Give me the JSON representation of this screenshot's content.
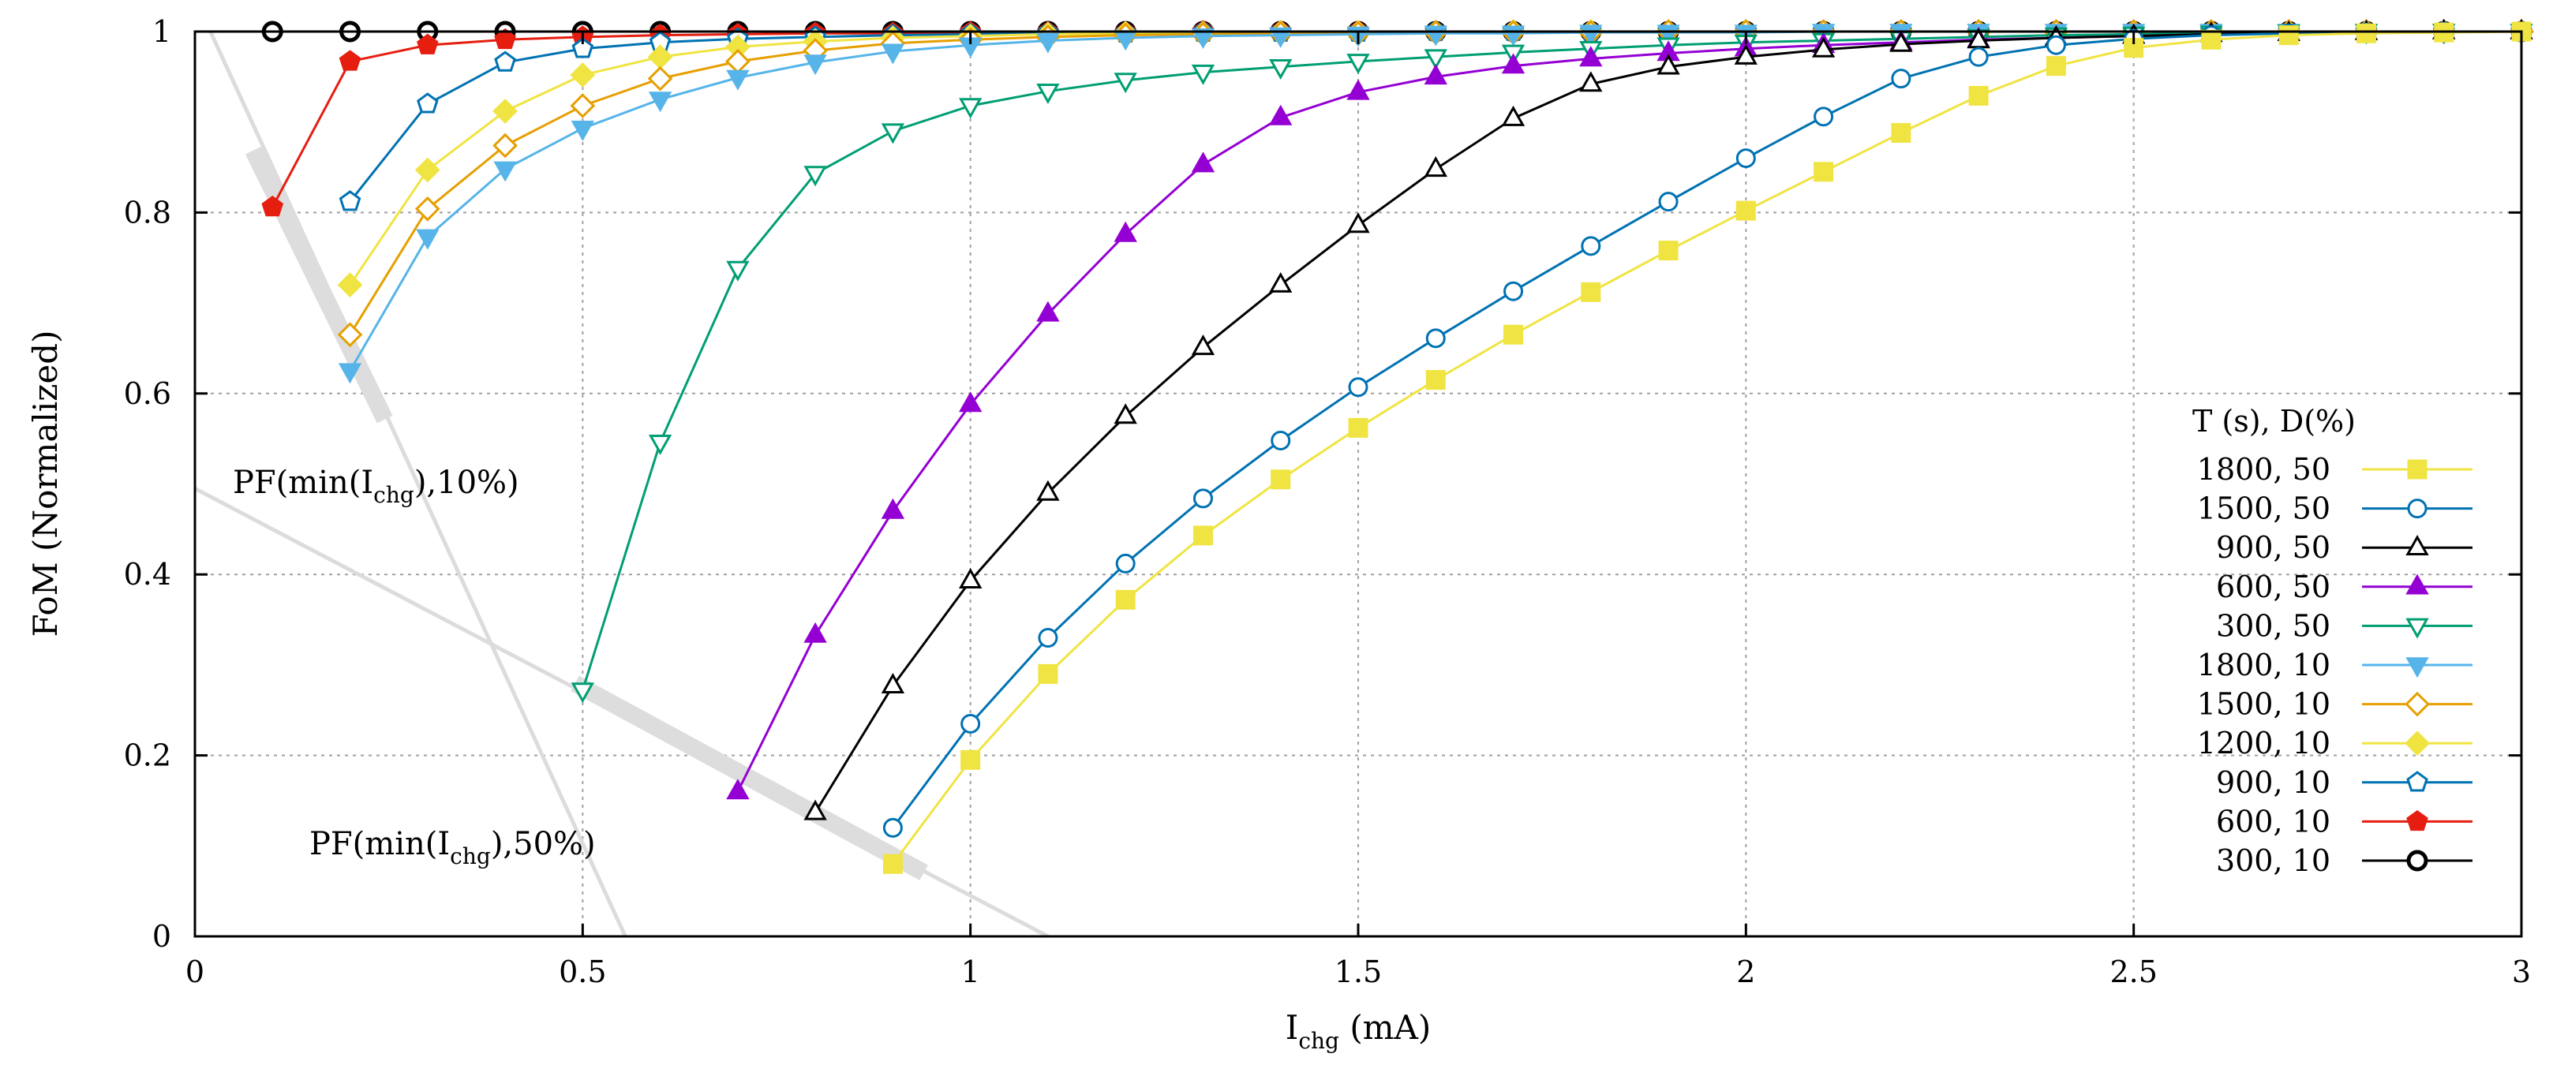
{
  "chart_data": {
    "type": "line",
    "title": "",
    "xlabel_main": "I",
    "xlabel_sub": "chg",
    "xlabel_unit": " (mA)",
    "ylabel": "FoM (Normalized)",
    "xlim": [
      0,
      3
    ],
    "ylim": [
      0,
      1
    ],
    "xticks": [
      0,
      0.5,
      1,
      1.5,
      2,
      2.5,
      3
    ],
    "xtick_labels": [
      "0",
      "0.5",
      "1",
      "1.5",
      "2",
      "2.5",
      "3"
    ],
    "yticks": [
      0,
      0.2,
      0.4,
      0.6,
      0.8,
      1
    ],
    "ytick_labels": [
      "0",
      "0.2",
      "0.4",
      "0.6",
      "0.8",
      "1"
    ],
    "grid": true,
    "legend_title": "T (s), D(%)",
    "legend_position": "right",
    "annotations": [
      {
        "prefix": "PF(min(I",
        "sub": "chg",
        "suffix": "),10%)"
      },
      {
        "prefix": "PF(min(I",
        "sub": "chg",
        "suffix": "),50%)"
      }
    ],
    "series": [
      {
        "name": "1800, 50",
        "color": "#f0e442",
        "marker": "square",
        "filled": true,
        "x": [
          0.9,
          1.0,
          1.1,
          1.2,
          1.3,
          1.4,
          1.5,
          1.6,
          1.7,
          1.8,
          1.9,
          2.0,
          2.1,
          2.2,
          2.3,
          2.4,
          2.5,
          2.6,
          2.7,
          2.8,
          2.9,
          3.0
        ],
        "y": [
          0.08,
          0.195,
          0.29,
          0.372,
          0.443,
          0.505,
          0.562,
          0.615,
          0.665,
          0.712,
          0.758,
          0.802,
          0.845,
          0.888,
          0.929,
          0.962,
          0.982,
          0.991,
          0.996,
          0.998,
          0.999,
          1.0
        ]
      },
      {
        "name": "1500, 50",
        "color": "#0072b2",
        "marker": "circle",
        "filled": false,
        "x": [
          0.9,
          1.0,
          1.1,
          1.2,
          1.3,
          1.4,
          1.5,
          1.6,
          1.7,
          1.8,
          1.9,
          2.0,
          2.1,
          2.2,
          2.3,
          2.4,
          2.5,
          2.6,
          2.7,
          2.8,
          2.9,
          3.0
        ],
        "y": [
          0.12,
          0.235,
          0.33,
          0.412,
          0.484,
          0.548,
          0.607,
          0.661,
          0.713,
          0.763,
          0.812,
          0.86,
          0.906,
          0.948,
          0.972,
          0.985,
          0.992,
          0.996,
          0.998,
          0.999,
          1.0,
          1.0
        ]
      },
      {
        "name": "900, 50",
        "color": "#000000",
        "marker": "triangle",
        "filled": false,
        "x": [
          0.8,
          0.9,
          1.0,
          1.1,
          1.2,
          1.3,
          1.4,
          1.5,
          1.6,
          1.7,
          1.8,
          1.9,
          2.0,
          2.1,
          2.2,
          2.3,
          2.4,
          2.5,
          2.6,
          2.7,
          2.8,
          2.9,
          3.0
        ],
        "y": [
          0.137,
          0.277,
          0.393,
          0.49,
          0.575,
          0.651,
          0.72,
          0.786,
          0.848,
          0.904,
          0.942,
          0.961,
          0.972,
          0.98,
          0.986,
          0.99,
          0.993,
          0.995,
          0.997,
          0.998,
          0.999,
          1.0,
          1.0
        ]
      },
      {
        "name": "600, 50",
        "color": "#9400d3",
        "marker": "triangle",
        "filled": true,
        "x": [
          0.7,
          0.8,
          0.9,
          1.0,
          1.1,
          1.2,
          1.3,
          1.4,
          1.5,
          1.6,
          1.7,
          1.8,
          1.9,
          2.0,
          2.1,
          2.2,
          2.3,
          2.4,
          2.5,
          2.6,
          2.7,
          2.8,
          2.9,
          3.0
        ],
        "y": [
          0.16,
          0.333,
          0.47,
          0.588,
          0.688,
          0.776,
          0.853,
          0.905,
          0.933,
          0.95,
          0.962,
          0.97,
          0.976,
          0.981,
          0.985,
          0.988,
          0.991,
          0.993,
          0.995,
          0.997,
          0.998,
          0.999,
          1.0,
          1.0
        ]
      },
      {
        "name": "300, 50",
        "color": "#009e73",
        "marker": "triangle-down",
        "filled": false,
        "x": [
          0.5,
          0.6,
          0.7,
          0.8,
          0.9,
          1.0,
          1.1,
          1.2,
          1.3,
          1.4,
          1.5,
          1.6,
          1.7,
          1.8,
          1.9,
          2.0,
          2.1,
          2.2,
          2.3,
          2.4,
          2.5,
          2.6,
          2.7,
          2.8,
          2.9,
          3.0
        ],
        "y": [
          0.272,
          0.546,
          0.738,
          0.843,
          0.89,
          0.918,
          0.934,
          0.946,
          0.955,
          0.961,
          0.967,
          0.972,
          0.977,
          0.981,
          0.985,
          0.988,
          0.99,
          0.992,
          0.994,
          0.996,
          0.997,
          0.998,
          0.999,
          1.0,
          1.0,
          1.0
        ]
      },
      {
        "name": "1800, 10",
        "color": "#56b4e9",
        "marker": "triangle-down",
        "filled": true,
        "x": [
          0.2,
          0.3,
          0.4,
          0.5,
          0.6,
          0.7,
          0.8,
          0.9,
          1.0,
          1.1,
          1.2,
          1.3,
          1.4,
          1.5,
          1.6,
          1.7,
          1.8,
          1.9,
          2.0,
          2.1,
          2.2,
          2.3,
          2.4,
          2.5,
          2.6,
          2.7,
          2.8,
          2.9,
          3.0
        ],
        "y": [
          0.625,
          0.773,
          0.848,
          0.893,
          0.925,
          0.949,
          0.966,
          0.978,
          0.985,
          0.99,
          0.993,
          0.995,
          0.996,
          0.997,
          0.998,
          0.998,
          0.999,
          0.999,
          0.999,
          1.0,
          1.0,
          1.0,
          1.0,
          1.0,
          1.0,
          1.0,
          1.0,
          1.0,
          1.0
        ]
      },
      {
        "name": "1500, 10",
        "color": "#e69f00",
        "marker": "diamond",
        "filled": false,
        "x": [
          0.2,
          0.3,
          0.4,
          0.5,
          0.6,
          0.7,
          0.8,
          0.9,
          1.0,
          1.1,
          1.2,
          1.3,
          1.4,
          1.5,
          1.6,
          1.7,
          1.8,
          1.9,
          2.0,
          2.1,
          2.2,
          2.3,
          2.4,
          2.5,
          2.6,
          2.7,
          2.8,
          2.9,
          3.0
        ],
        "y": [
          0.665,
          0.804,
          0.874,
          0.918,
          0.948,
          0.967,
          0.979,
          0.987,
          0.991,
          0.994,
          0.996,
          0.997,
          0.998,
          0.998,
          0.999,
          0.999,
          0.999,
          1.0,
          1.0,
          1.0,
          1.0,
          1.0,
          1.0,
          1.0,
          1.0,
          1.0,
          1.0,
          1.0,
          1.0
        ]
      },
      {
        "name": "1200, 10",
        "color": "#f0e442",
        "marker": "diamond",
        "filled": true,
        "x": [
          0.2,
          0.3,
          0.4,
          0.5,
          0.6,
          0.7,
          0.8,
          0.9,
          1.0,
          1.1,
          1.2,
          1.3,
          1.4,
          1.5,
          1.6,
          1.7,
          1.8,
          1.9,
          2.0,
          2.1,
          2.2,
          2.3,
          2.4,
          2.5,
          2.6,
          2.7,
          2.8,
          2.9,
          3.0
        ],
        "y": [
          0.72,
          0.847,
          0.912,
          0.952,
          0.972,
          0.983,
          0.989,
          0.993,
          0.995,
          0.997,
          0.998,
          0.998,
          0.999,
          0.999,
          0.999,
          1.0,
          1.0,
          1.0,
          1.0,
          1.0,
          1.0,
          1.0,
          1.0,
          1.0,
          1.0,
          1.0,
          1.0,
          1.0,
          1.0
        ]
      },
      {
        "name": "900, 10",
        "color": "#0072b2",
        "marker": "pentagon",
        "filled": false,
        "x": [
          0.2,
          0.3,
          0.4,
          0.5,
          0.6,
          0.7,
          0.8,
          0.9,
          1.0,
          1.1,
          1.2,
          1.3,
          1.4,
          1.5,
          1.6,
          1.7,
          1.8,
          1.9,
          2.0,
          2.1,
          2.2,
          2.3,
          2.4,
          2.5,
          2.6,
          2.7,
          2.8,
          2.9,
          3.0
        ],
        "y": [
          0.812,
          0.92,
          0.966,
          0.981,
          0.988,
          0.992,
          0.994,
          0.996,
          0.997,
          0.998,
          0.998,
          0.999,
          0.999,
          0.999,
          1.0,
          1.0,
          1.0,
          1.0,
          1.0,
          1.0,
          1.0,
          1.0,
          1.0,
          1.0,
          1.0,
          1.0,
          1.0,
          1.0,
          1.0
        ]
      },
      {
        "name": "600, 10",
        "color": "#e51e10",
        "marker": "pentagon",
        "filled": true,
        "x": [
          0.1,
          0.2,
          0.3,
          0.4,
          0.5,
          0.6,
          0.7,
          0.8,
          0.9,
          1.0,
          1.1,
          1.2,
          1.3,
          1.4,
          1.5,
          1.6,
          1.7,
          1.8,
          1.9,
          2.0,
          2.1,
          2.2,
          2.3,
          2.4,
          2.5,
          2.6,
          2.7,
          2.8,
          2.9,
          3.0
        ],
        "y": [
          0.806,
          0.967,
          0.985,
          0.991,
          0.994,
          0.996,
          0.997,
          0.998,
          0.998,
          0.999,
          0.999,
          0.999,
          1.0,
          1.0,
          1.0,
          1.0,
          1.0,
          1.0,
          1.0,
          1.0,
          1.0,
          1.0,
          1.0,
          1.0,
          1.0,
          1.0,
          1.0,
          1.0,
          1.0,
          1.0
        ]
      },
      {
        "name": "300, 10",
        "color": "#000000",
        "marker": "circle-bold",
        "filled": false,
        "x": [
          0.1,
          0.2,
          0.3,
          0.4,
          0.5,
          0.6,
          0.7,
          0.8,
          0.9,
          1.0,
          1.1,
          1.2,
          1.3,
          1.4,
          1.5,
          1.6,
          1.7,
          1.8,
          1.9,
          2.0,
          2.1,
          2.2,
          2.3,
          2.4,
          2.5,
          2.6,
          2.7,
          2.8,
          2.9,
          3.0
        ],
        "y": [
          1.0,
          1.0,
          1.0,
          1.0,
          1.0,
          1.0,
          1.0,
          1.0,
          1.0,
          1.0,
          1.0,
          1.0,
          1.0,
          1.0,
          1.0,
          1.0,
          1.0,
          1.0,
          1.0,
          1.0,
          1.0,
          1.0,
          1.0,
          1.0,
          1.0,
          1.0,
          1.0,
          1.0,
          1.0,
          1.0
        ]
      }
    ],
    "pareto_fronts": [
      {
        "name": "PF 10%",
        "line": [
          [
            0.02,
            1.0
          ],
          [
            0.555,
            0.0
          ]
        ],
        "band": [
          [
            0.08,
            0.86
          ],
          [
            0.24,
            0.58
          ]
        ]
      },
      {
        "name": "PF 50%",
        "line": [
          [
            0.0,
            0.495
          ],
          [
            1.1,
            0.0
          ]
        ],
        "band": [
          [
            0.5,
            0.275
          ],
          [
            0.93,
            0.075
          ]
        ]
      }
    ]
  }
}
